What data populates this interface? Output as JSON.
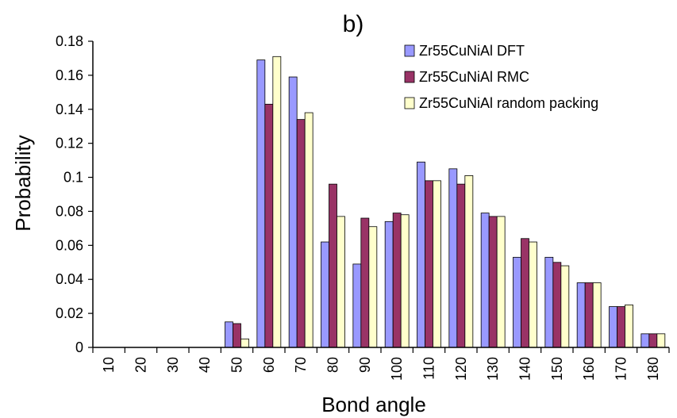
{
  "chart_data": {
    "type": "bar",
    "title": "b)",
    "xlabel": "Bond angle",
    "ylabel": "Probability",
    "ylim": [
      0,
      0.18
    ],
    "yticks": [
      "0",
      "0.02",
      "0.04",
      "0.06",
      "0.08",
      "0.1",
      "0.12",
      "0.14",
      "0.16",
      "0.18"
    ],
    "ytick_values": [
      0,
      0.02,
      0.04,
      0.06,
      0.08,
      0.1,
      0.12,
      0.14,
      0.16,
      0.18
    ],
    "categories": [
      "10",
      "20",
      "30",
      "40",
      "50",
      "60",
      "70",
      "80",
      "90",
      "100",
      "110",
      "120",
      "130",
      "140",
      "150",
      "160",
      "170",
      "180"
    ],
    "grid": false,
    "legend_position": "top-right",
    "series": [
      {
        "name": "Zr55CuNiAl DFT",
        "color": "#9999ff",
        "values": [
          0,
          0,
          0,
          0,
          0.015,
          0.169,
          0.159,
          0.062,
          0.049,
          0.074,
          0.109,
          0.105,
          0.079,
          0.053,
          0.053,
          0.038,
          0.024,
          0.008
        ]
      },
      {
        "name": "Zr55CuNiAl RMC",
        "color": "#993366",
        "values": [
          0,
          0,
          0,
          0,
          0.014,
          0.143,
          0.134,
          0.096,
          0.076,
          0.079,
          0.098,
          0.096,
          0.077,
          0.064,
          0.05,
          0.038,
          0.024,
          0.008
        ]
      },
      {
        "name": "Zr55CuNiAl random packing",
        "color": "#ffffcc",
        "values": [
          0,
          0,
          0,
          0,
          0.005,
          0.171,
          0.138,
          0.077,
          0.071,
          0.078,
          0.098,
          0.101,
          0.077,
          0.062,
          0.048,
          0.038,
          0.025,
          0.008
        ]
      }
    ]
  }
}
